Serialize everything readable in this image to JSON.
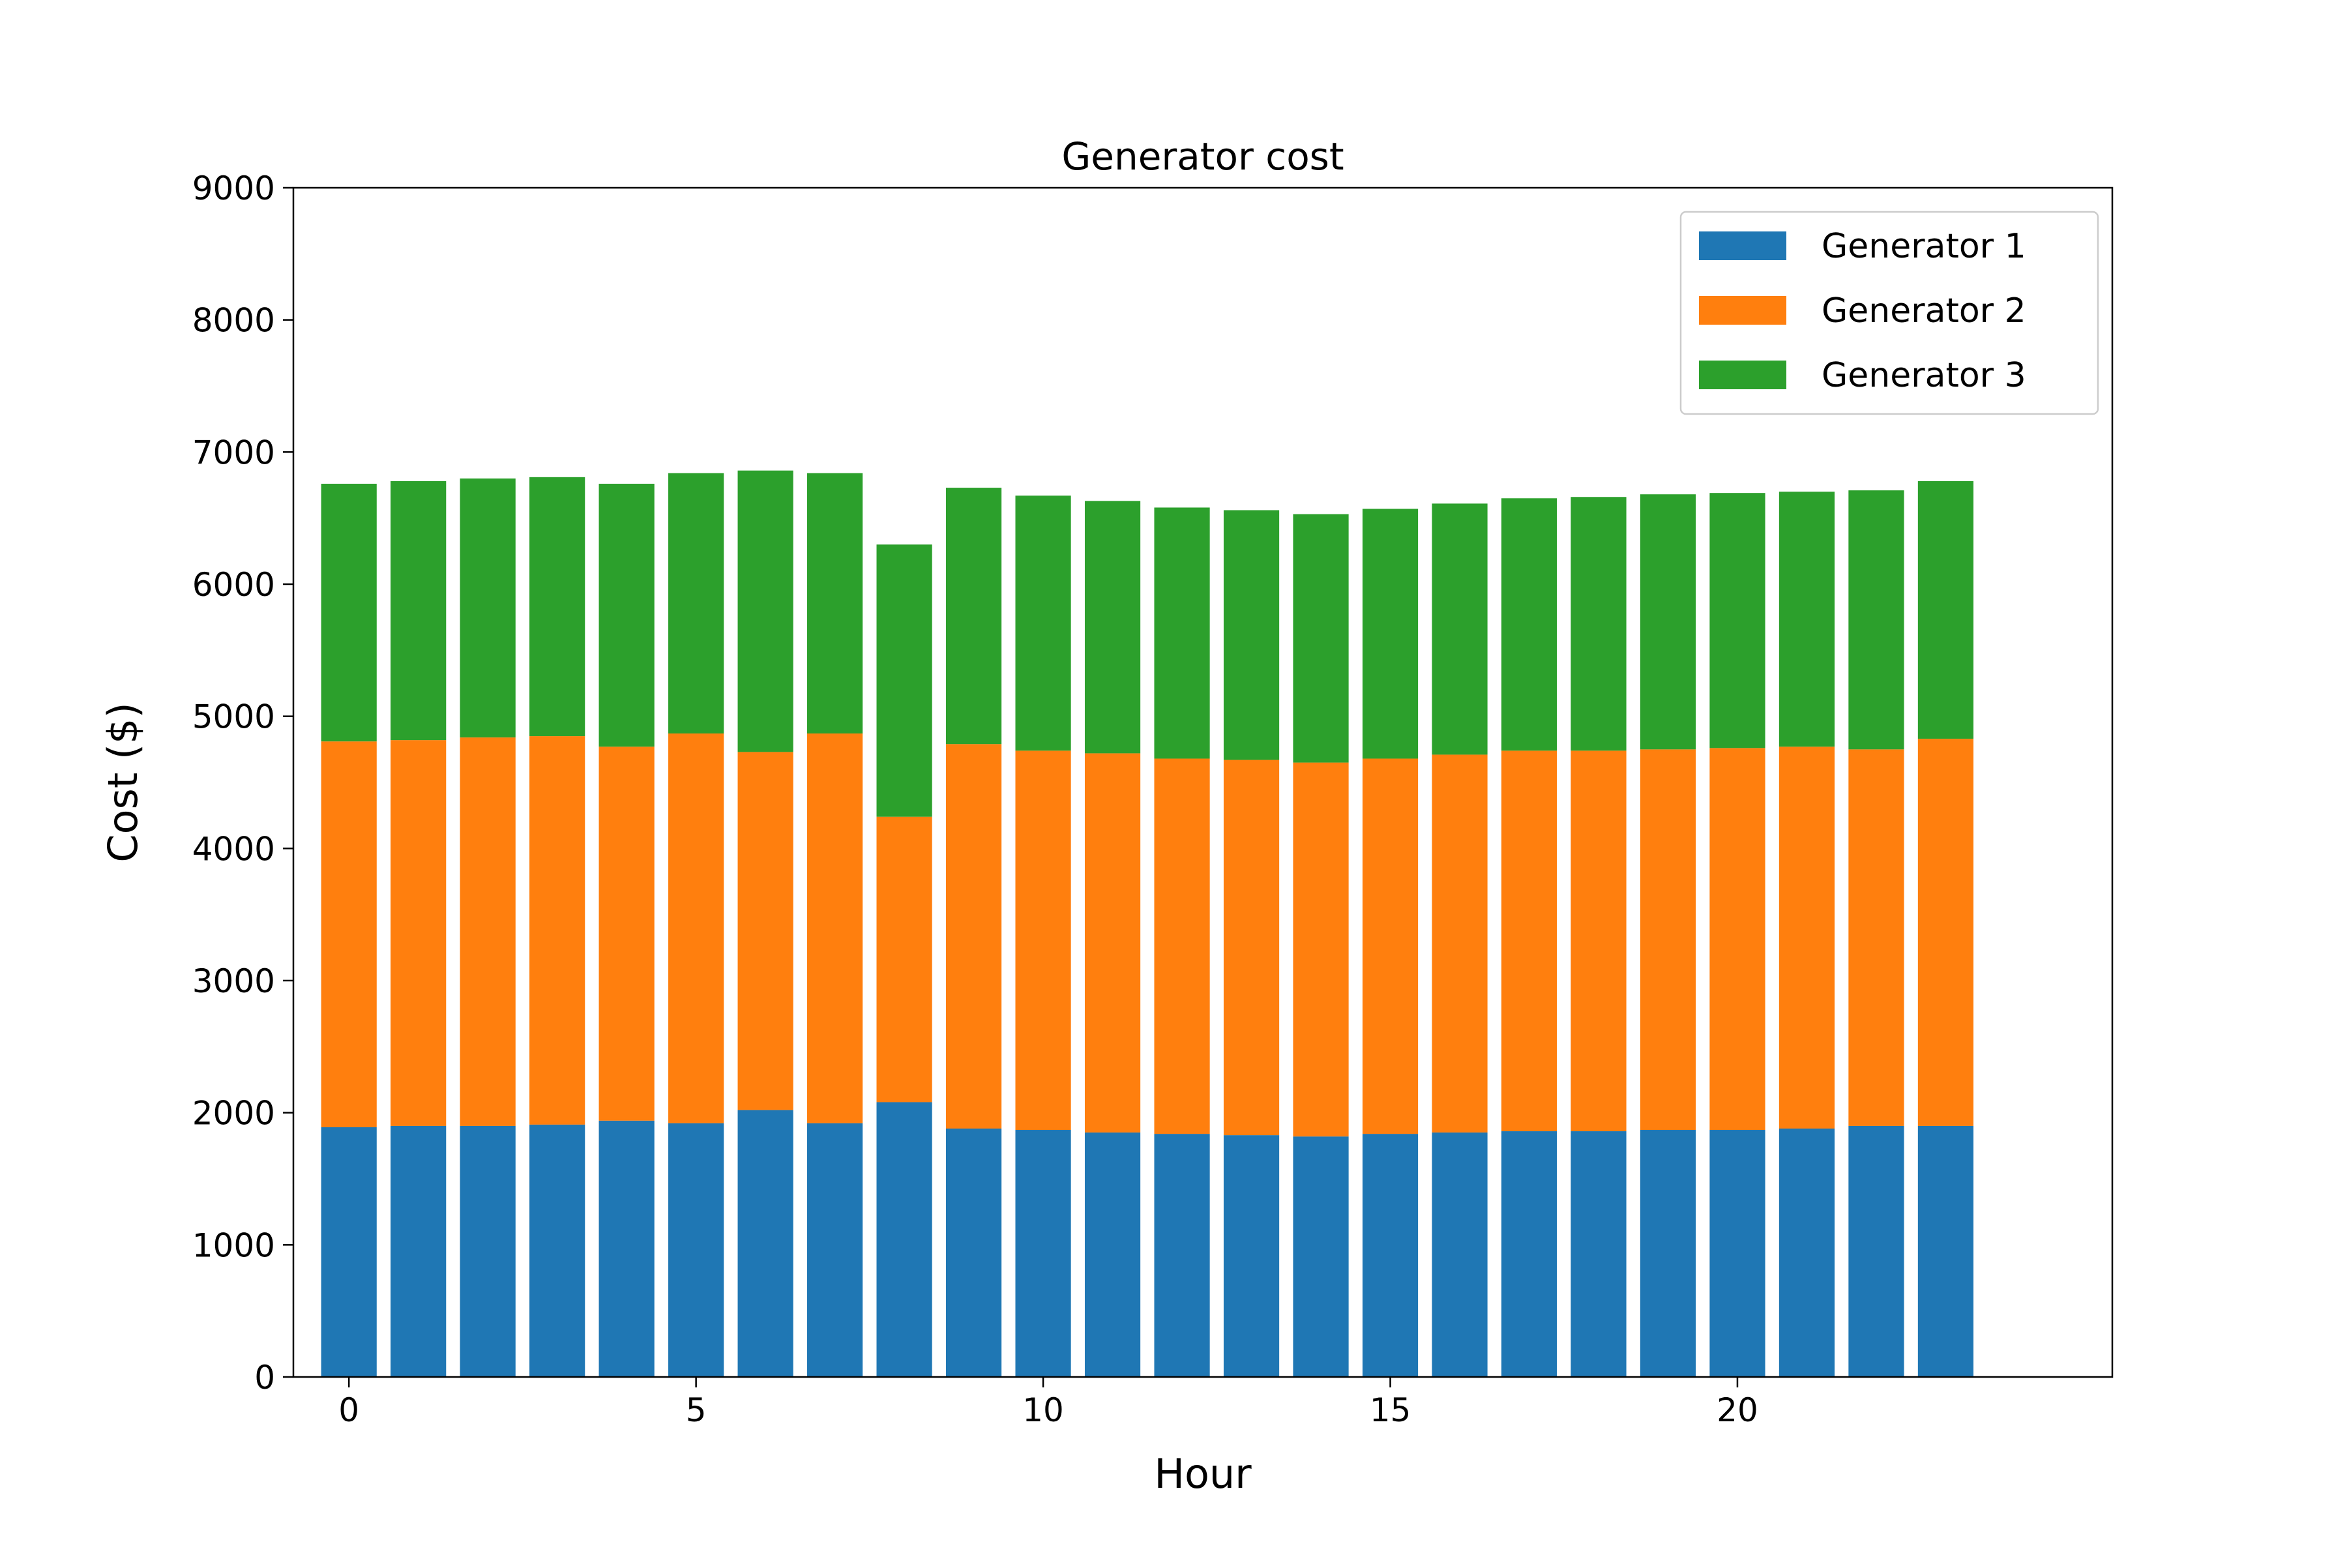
{
  "chart_data": {
    "type": "bar",
    "stacked": true,
    "title": "Generator cost",
    "xlabel": "Hour",
    "ylabel": "Cost ($)",
    "x": [
      0,
      1,
      2,
      3,
      4,
      5,
      6,
      7,
      8,
      9,
      10,
      11,
      12,
      13,
      14,
      15,
      16,
      17,
      18,
      19,
      20,
      21,
      22,
      23
    ],
    "xlim": [
      -0.8,
      25.4
    ],
    "ylim": [
      0,
      9000
    ],
    "xticks": [
      0,
      5,
      10,
      15,
      20
    ],
    "xtick_labels": [
      "0",
      "5",
      "10",
      "15",
      "20"
    ],
    "yticks": [
      0,
      1000,
      2000,
      3000,
      4000,
      5000,
      6000,
      7000,
      8000,
      9000
    ],
    "ytick_labels": [
      "0",
      "1000",
      "2000",
      "3000",
      "4000",
      "5000",
      "6000",
      "7000",
      "8000",
      "9000"
    ],
    "grid": false,
    "legend_position": "top-right",
    "series": [
      {
        "name": "Generator 1",
        "color": "#1f77b4",
        "values": [
          1890,
          1900,
          1900,
          1910,
          1940,
          1920,
          2020,
          1920,
          2080,
          1880,
          1870,
          1850,
          1840,
          1830,
          1820,
          1840,
          1850,
          1860,
          1860,
          1870,
          1870,
          1880,
          1900,
          1900
        ]
      },
      {
        "name": "Generator 2",
        "color": "#ff7f0e",
        "values": [
          2920,
          2920,
          2940,
          2940,
          2830,
          2950,
          2710,
          2950,
          2160,
          2910,
          2870,
          2870,
          2840,
          2840,
          2830,
          2840,
          2860,
          2880,
          2880,
          2880,
          2890,
          2890,
          2850,
          2930
        ]
      },
      {
        "name": "Generator 3",
        "color": "#2ca02c",
        "values": [
          1950,
          1960,
          1960,
          1960,
          1990,
          1970,
          2130,
          1970,
          2060,
          1940,
          1930,
          1910,
          1900,
          1890,
          1880,
          1890,
          1900,
          1910,
          1920,
          1930,
          1930,
          1930,
          1960,
          1950
        ]
      }
    ]
  }
}
